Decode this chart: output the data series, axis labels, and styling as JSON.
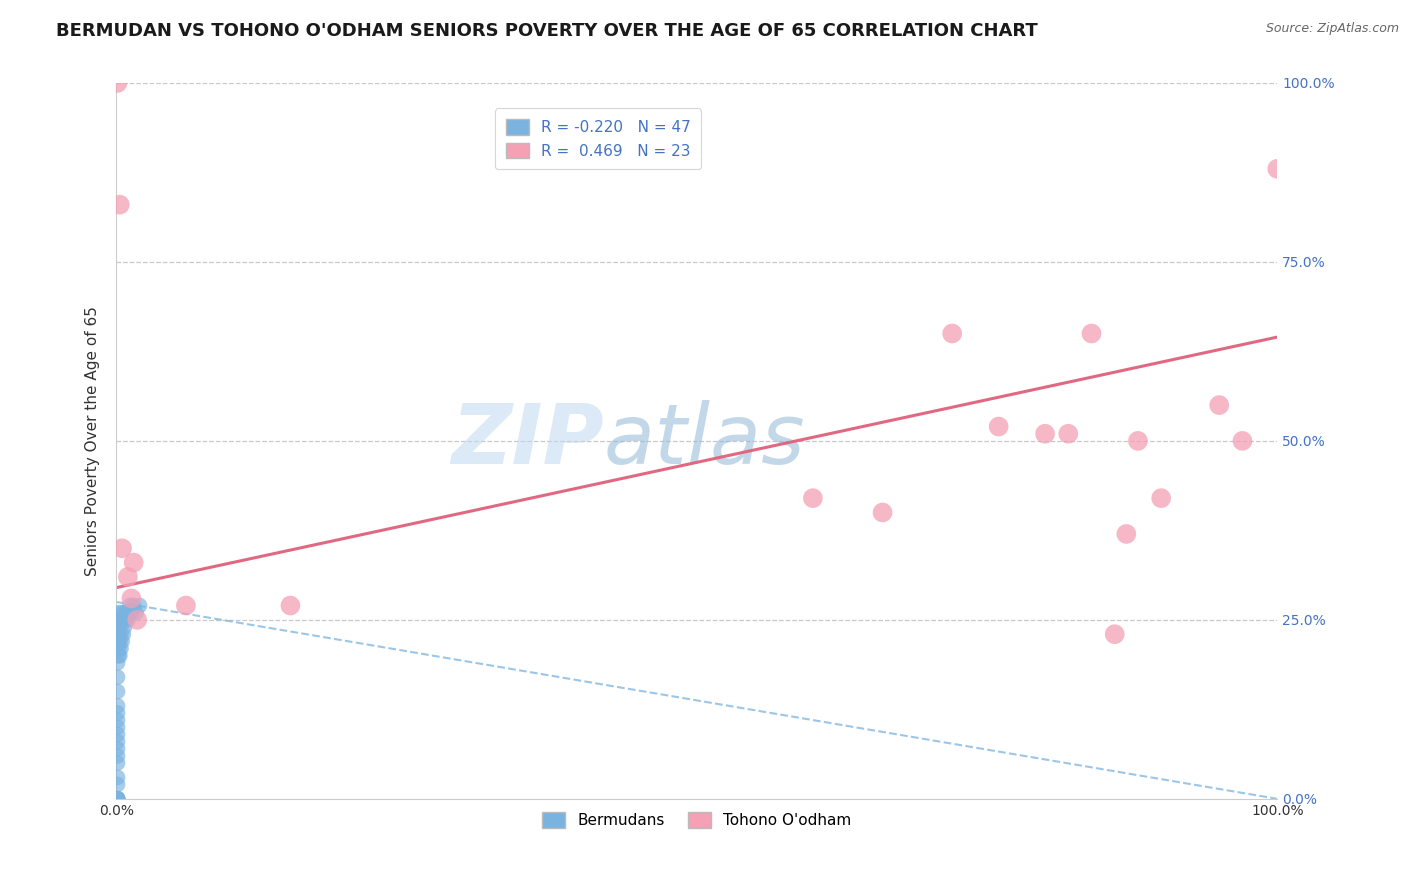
{
  "title": "BERMUDAN VS TOHONO O'ODHAM SENIORS POVERTY OVER THE AGE OF 65 CORRELATION CHART",
  "source": "Source: ZipAtlas.com",
  "ylabel": "Seniors Poverty Over the Age of 65",
  "xlim": [
    0.0,
    1.0
  ],
  "ylim": [
    0.0,
    1.0
  ],
  "xticks": [
    0.0,
    0.25,
    0.5,
    0.75,
    1.0
  ],
  "yticks": [
    0.0,
    0.25,
    0.5,
    0.75,
    1.0
  ],
  "xticklabels": [
    "0.0%",
    "",
    "",
    "",
    "100.0%"
  ],
  "left_yticklabels": [
    "",
    "",
    "",
    "",
    ""
  ],
  "right_yticklabels": [
    "0.0%",
    "25.0%",
    "50.0%",
    "75.0%",
    "100.0%"
  ],
  "bermudans_color": "#7ab3e0",
  "tohono_color": "#f4a0b5",
  "bermudans_line_color": "#7ab3e0",
  "tohono_line_color": "#e0607a",
  "bermudans_R": -0.22,
  "bermudans_N": 47,
  "tohono_R": 0.469,
  "tohono_N": 23,
  "bermudans_x": [
    0.001,
    0.001,
    0.001,
    0.001,
    0.001,
    0.001,
    0.001,
    0.001,
    0.001,
    0.001,
    0.001,
    0.001,
    0.001,
    0.001,
    0.001,
    0.001,
    0.001,
    0.001,
    0.001,
    0.001,
    0.002,
    0.002,
    0.002,
    0.002,
    0.002,
    0.002,
    0.002,
    0.003,
    0.003,
    0.004,
    0.004,
    0.004,
    0.005,
    0.005,
    0.006,
    0.006,
    0.007,
    0.007,
    0.008,
    0.009,
    0.01,
    0.011,
    0.012,
    0.013,
    0.015,
    0.017,
    0.02
  ],
  "bermudans_y": [
    0.0,
    0.0,
    0.0,
    0.0,
    0.0,
    0.0,
    0.02,
    0.03,
    0.05,
    0.06,
    0.07,
    0.08,
    0.09,
    0.1,
    0.11,
    0.12,
    0.13,
    0.15,
    0.17,
    0.19,
    0.2,
    0.21,
    0.22,
    0.23,
    0.24,
    0.25,
    0.26,
    0.2,
    0.22,
    0.21,
    0.23,
    0.25,
    0.22,
    0.26,
    0.23,
    0.25,
    0.24,
    0.26,
    0.25,
    0.26,
    0.25,
    0.26,
    0.27,
    0.26,
    0.27,
    0.26,
    0.27
  ],
  "tohono_x": [
    0.001,
    0.003,
    0.005,
    0.01,
    0.013,
    0.015,
    0.018,
    0.06,
    0.15,
    0.6,
    0.66,
    0.72,
    0.76,
    0.8,
    0.82,
    0.84,
    0.86,
    0.87,
    0.88,
    0.9,
    0.95,
    0.97,
    1.0
  ],
  "tohono_y": [
    1.0,
    0.83,
    0.35,
    0.31,
    0.28,
    0.33,
    0.25,
    0.27,
    0.27,
    0.42,
    0.4,
    0.65,
    0.52,
    0.51,
    0.51,
    0.65,
    0.23,
    0.37,
    0.5,
    0.42,
    0.55,
    0.5,
    0.88
  ],
  "tohono_line_x0": 0.0,
  "tohono_line_y0": 0.295,
  "tohono_line_x1": 1.0,
  "tohono_line_y1": 0.645,
  "bermudans_line_x0": 0.0,
  "bermudans_line_y0": 0.275,
  "bermudans_line_x1": 1.0,
  "bermudans_line_y1": 0.0,
  "watermark_top": "ZIP",
  "watermark_bot": "atlas",
  "background_color": "#ffffff",
  "grid_color": "#c8c8c8",
  "title_fontsize": 13,
  "label_fontsize": 11,
  "tick_fontsize": 10,
  "legend_fontsize": 11
}
